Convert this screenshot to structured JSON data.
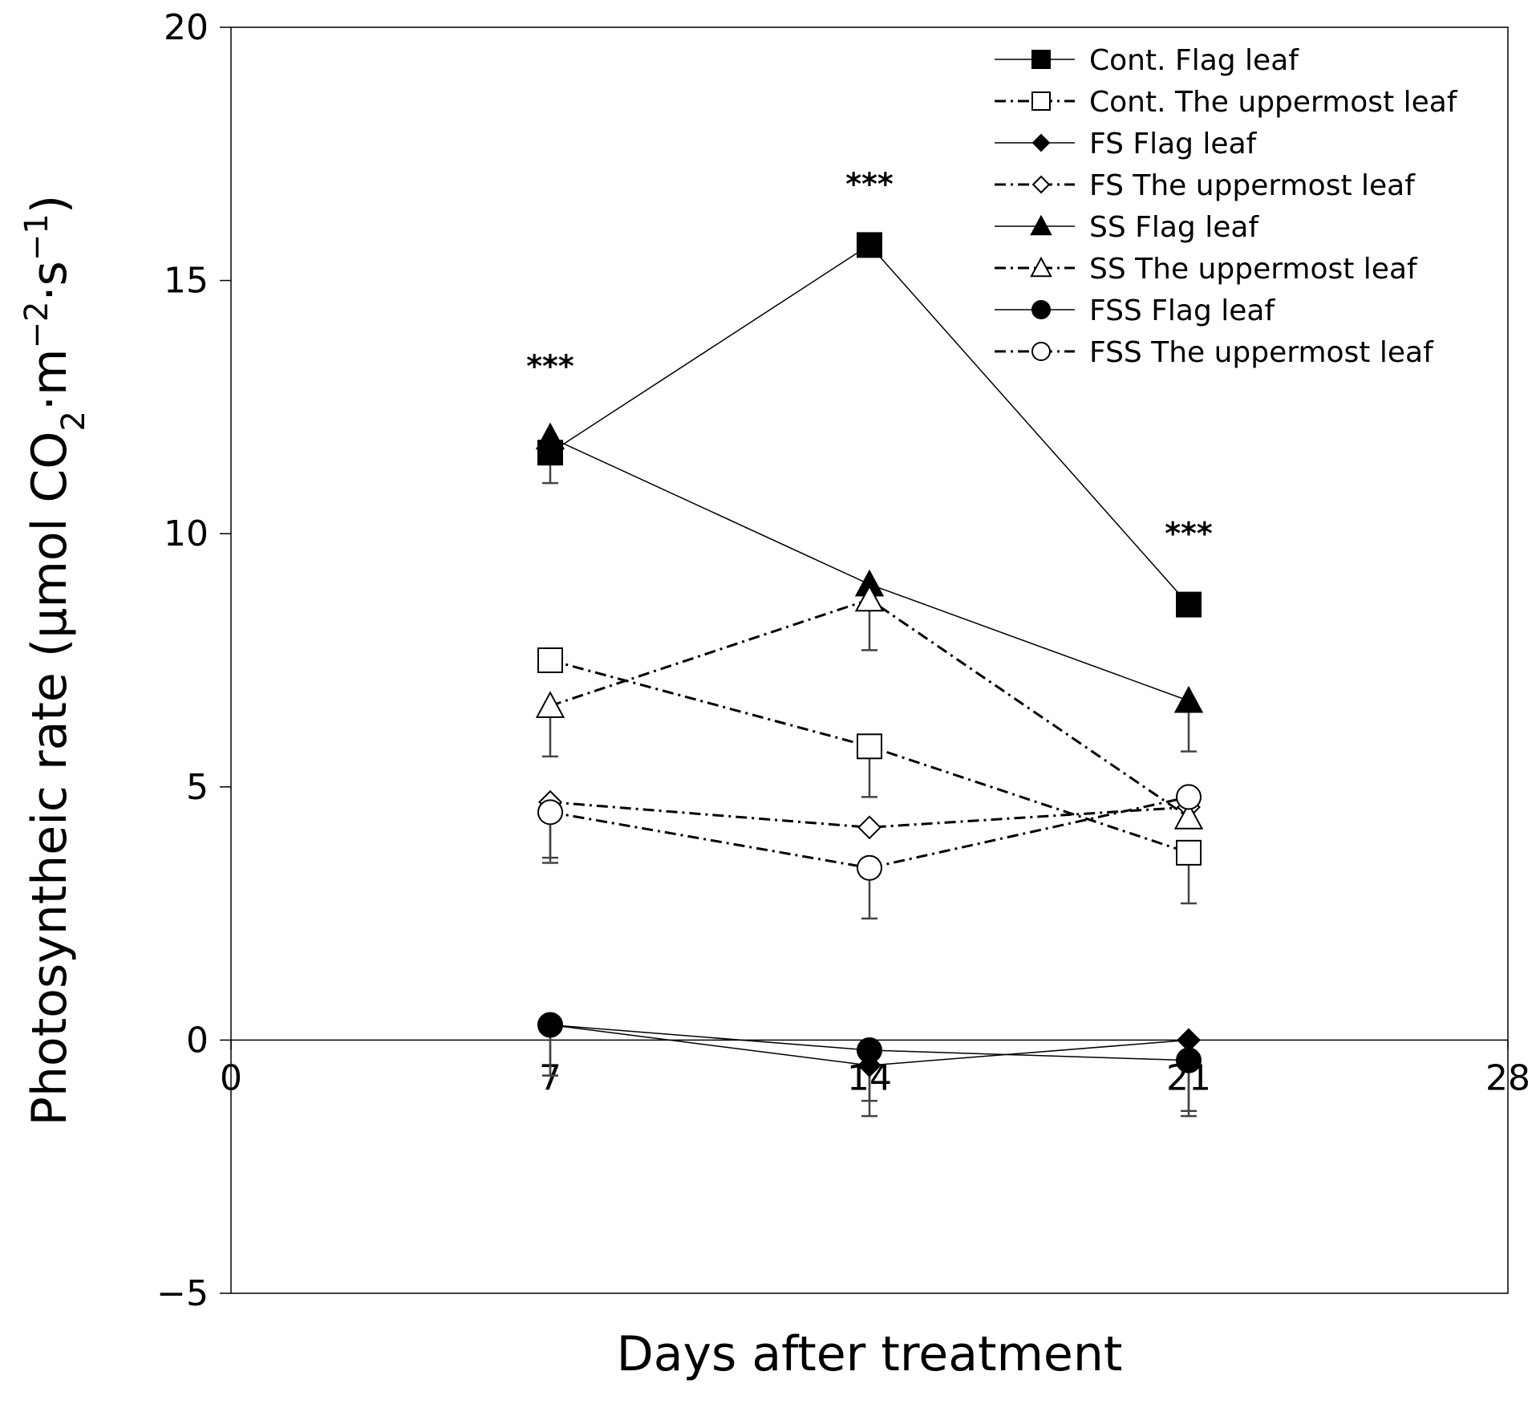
{
  "chart_data": {
    "type": "line",
    "xlabel": "Days after treatment",
    "ylabel_prefix": "Photosyntheic rate (μmol CO",
    "ylabel_sub": "2",
    "ylabel_mid": "·m",
    "ylabel_sup1": "−2",
    "ylabel_mid2": "·s",
    "ylabel_sup2": "−1",
    "ylabel_suffix": ")",
    "xlim": [
      0,
      28
    ],
    "ylim": [
      -5,
      20
    ],
    "x_ticks": [
      0,
      7,
      14,
      21,
      28
    ],
    "x_tick_labels": [
      "0",
      "7",
      "14",
      "21",
      "28"
    ],
    "y_ticks": [
      -5,
      0,
      5,
      10,
      15,
      20
    ],
    "y_tick_labels": [
      "−5",
      "0",
      "5",
      "10",
      "15",
      "20"
    ],
    "legend_position": "top-right",
    "series": [
      {
        "name": "Cont. Flag leaf",
        "marker": "square",
        "fill": "filled",
        "line": "solid",
        "x": [
          7,
          14,
          21
        ],
        "y": [
          11.6,
          15.7,
          8.6
        ],
        "err": [
          0.6,
          0,
          0
        ]
      },
      {
        "name": "Cont. The uppermost leaf",
        "marker": "square",
        "fill": "open",
        "line": "dashdot",
        "x": [
          7,
          14,
          21
        ],
        "y": [
          7.5,
          5.8,
          3.7
        ],
        "err": [
          0,
          1.0,
          1.0
        ]
      },
      {
        "name": "FS Flag leaf",
        "marker": "diamond",
        "fill": "filled",
        "line": "solid",
        "x": [
          7,
          14,
          21
        ],
        "y": [
          0.3,
          -0.5,
          0.0
        ],
        "err": [
          1.0,
          1.0,
          1.5
        ]
      },
      {
        "name": "FS The uppermost leaf",
        "marker": "diamond",
        "fill": "open",
        "line": "dashdot",
        "x": [
          7,
          14,
          21
        ],
        "y": [
          4.7,
          4.2,
          4.6
        ],
        "err": [
          1.1,
          0,
          0
        ]
      },
      {
        "name": "SS Flag leaf",
        "marker": "triangle",
        "fill": "filled",
        "line": "solid",
        "x": [
          7,
          14,
          21
        ],
        "y": [
          11.9,
          9.0,
          6.7
        ],
        "err": [
          0.4,
          0.4,
          1.0
        ]
      },
      {
        "name": "SS The uppermost leaf",
        "marker": "triangle",
        "fill": "open",
        "line": "dashdot",
        "x": [
          7,
          14,
          21
        ],
        "y": [
          6.6,
          8.7,
          4.4
        ],
        "err": [
          1.0,
          1.0,
          0
        ]
      },
      {
        "name": "FSS Flag leaf",
        "marker": "circle",
        "fill": "filled",
        "line": "solid",
        "x": [
          7,
          14,
          21
        ],
        "y": [
          0.3,
          -0.2,
          -0.4
        ],
        "err": [
          1.0,
          1.0,
          1.0
        ]
      },
      {
        "name": "FSS The uppermost leaf",
        "marker": "circle",
        "fill": "open",
        "line": "dashdot",
        "x": [
          7,
          14,
          21
        ],
        "y": [
          4.5,
          3.4,
          4.8
        ],
        "err": [
          1.0,
          1.0,
          0
        ]
      }
    ],
    "annotations": [
      {
        "text": "***",
        "x": 7,
        "y": 13.1
      },
      {
        "text": "***",
        "x": 14,
        "y": 16.7
      },
      {
        "text": "***",
        "x": 21,
        "y": 9.8
      }
    ]
  }
}
